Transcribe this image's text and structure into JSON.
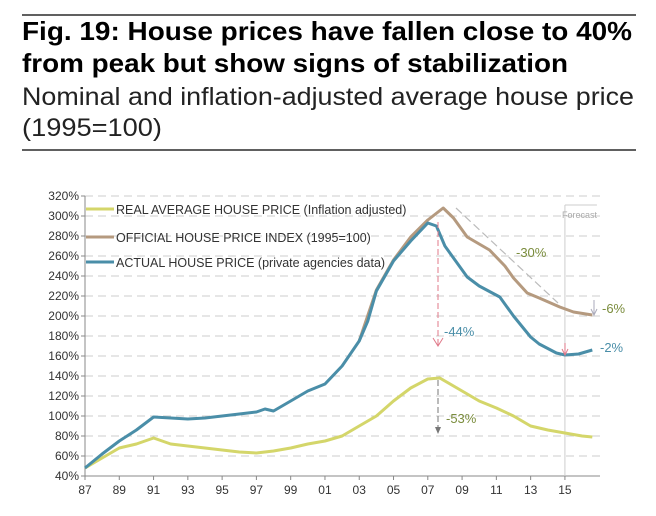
{
  "header": {
    "title_line1": "Fig. 19: House prices have fallen close to 40%",
    "title_line2": "from peak but show signs of stabilization",
    "subtitle_line1": "Nominal and inflation-adjusted average house price",
    "subtitle_line2": "(1995=100)"
  },
  "chart_data": {
    "type": "line",
    "title": "Fig. 19: House prices have fallen close to 40% from peak but show signs of stabilization",
    "subtitle": "Nominal and inflation-adjusted average house price (1995=100)",
    "xlabel": "",
    "ylabel": "",
    "xlim": [
      1987,
      2017
    ],
    "ylim": [
      40,
      320
    ],
    "x_tick_labels": [
      "87",
      "89",
      "91",
      "93",
      "95",
      "97",
      "99",
      "01",
      "03",
      "05",
      "07",
      "09",
      "11",
      "13",
      "15"
    ],
    "y_tick_labels": [
      "40%",
      "60%",
      "80%",
      "100%",
      "120%",
      "140%",
      "160%",
      "180%",
      "200%",
      "220%",
      "240%",
      "260%",
      "280%",
      "300%",
      "320%"
    ],
    "grid": "horizontal dashed",
    "legend_placement": "top-left",
    "forecast_label": "Forecast",
    "forecast_start": 2015,
    "series": [
      {
        "name": "REAL AVERAGE HOUSE PRICE (Inflation adjusted)",
        "color": "#d4d66a",
        "x": [
          1987,
          1988,
          1989,
          1990,
          1991,
          1992,
          1993,
          1994,
          1995,
          1996,
          1997,
          1998,
          1999,
          2000,
          2001,
          2002,
          2003,
          2004,
          2005,
          2006,
          2007,
          2007.7,
          2008,
          2009,
          2010,
          2011,
          2012,
          2013,
          2014,
          2015,
          2016,
          2016.6
        ],
        "y": [
          48,
          58,
          68,
          72,
          78,
          72,
          70,
          68,
          66,
          64,
          63,
          65,
          68,
          72,
          75,
          80,
          90,
          100,
          115,
          128,
          137,
          138,
          135,
          125,
          115,
          108,
          100,
          90,
          86,
          83,
          80,
          79
        ]
      },
      {
        "name": "OFFICIAL HOUSE PRICE INDEX (1995=100)",
        "color": "#b59a7f",
        "x": [
          2003,
          2004,
          2005,
          2006,
          2007,
          2007.9,
          2008.5,
          2009.3,
          2010,
          2010.6,
          2011.5,
          2012,
          2012.8,
          2013.5,
          2014.7,
          2015.5,
          2016.6
        ],
        "y": [
          175,
          226,
          256,
          279,
          296,
          308,
          298,
          279,
          272,
          266,
          250,
          238,
          223,
          218,
          209,
          204,
          201
        ]
      },
      {
        "name": "ACTUAL HOUSE PRICE (private agencies data)",
        "color": "#4a8ea8",
        "x": [
          1987,
          1988,
          1989,
          1990,
          1991,
          1992,
          1993,
          1994,
          1995,
          1996,
          1997,
          1997.5,
          1998,
          1999,
          2000,
          2001,
          2002,
          2003,
          2003.5,
          2004,
          2005,
          2006,
          2007,
          2007.5,
          2008,
          2008.5,
          2009.3,
          2010,
          2011.2,
          2012,
          2013,
          2013.5,
          2014.5,
          2015,
          2015.8,
          2016.6
        ],
        "y": [
          48,
          62,
          75,
          86,
          99,
          98,
          97,
          98,
          100,
          102,
          104,
          107,
          105,
          115,
          125,
          132,
          150,
          175,
          195,
          225,
          255,
          275,
          293,
          290,
          270,
          258,
          239,
          230,
          219,
          200,
          179,
          172,
          163,
          161,
          162,
          166
        ]
      }
    ],
    "annotations": [
      {
        "text": "-44%",
        "color": "#4a8ea8"
      },
      {
        "text": "-53%",
        "color": "#7a8c3c"
      },
      {
        "text": "-30%",
        "color": "#7a8c3c"
      },
      {
        "text": "-6%",
        "color": "#7a8c3c"
      },
      {
        "text": "-2%",
        "color": "#4a8ea8"
      }
    ]
  }
}
